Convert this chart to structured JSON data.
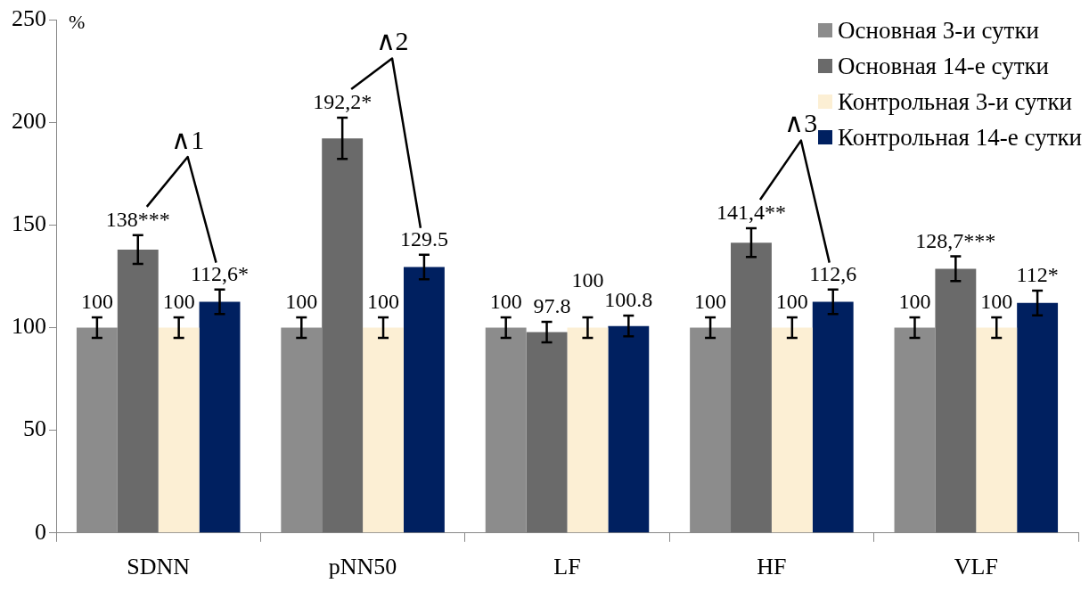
{
  "chart_data": {
    "type": "bar",
    "ylabel": "%",
    "categories": [
      "SDNN",
      "pNN50",
      "LF",
      "HF",
      "VLF"
    ],
    "series": [
      {
        "name": "Основная 3-и сутки",
        "color": "#8c8c8c",
        "values": [
          100,
          100,
          100,
          100,
          100
        ],
        "errors": [
          5,
          5,
          5,
          5,
          5
        ],
        "value_labels": [
          "100",
          "100",
          "100",
          "100",
          "100"
        ]
      },
      {
        "name": "Основная 14-е сутки",
        "color": "#6a6a6a",
        "values": [
          138,
          192.2,
          97.8,
          141.4,
          128.7
        ],
        "errors": [
          7,
          10,
          5,
          7,
          6
        ],
        "value_labels": [
          "138***",
          "192,2*",
          "97.8",
          "141,4**",
          "128,7***"
        ]
      },
      {
        "name": "Контрольная 3-и сутки",
        "color": "#fcefd4",
        "values": [
          100,
          100,
          100,
          100,
          100
        ],
        "errors": [
          5,
          5,
          5,
          5,
          5
        ],
        "value_labels": [
          "100",
          "100",
          "100",
          "100",
          "100"
        ]
      },
      {
        "name": "Контрольная 14-е сутки",
        "color": "#002060",
        "values": [
          112.6,
          129.5,
          100.8,
          112.6,
          112
        ],
        "errors": [
          6,
          6,
          5,
          6,
          6
        ],
        "value_labels": [
          "112,6*",
          "129.5",
          "100.8",
          "112,6",
          "112*"
        ]
      }
    ],
    "annotations": [
      "∧1",
      "∧2",
      "∧3"
    ],
    "ylim": [
      0,
      250
    ],
    "yticks": [
      0,
      50,
      100,
      150,
      200,
      250
    ],
    "grid": false,
    "legend": "top right"
  }
}
